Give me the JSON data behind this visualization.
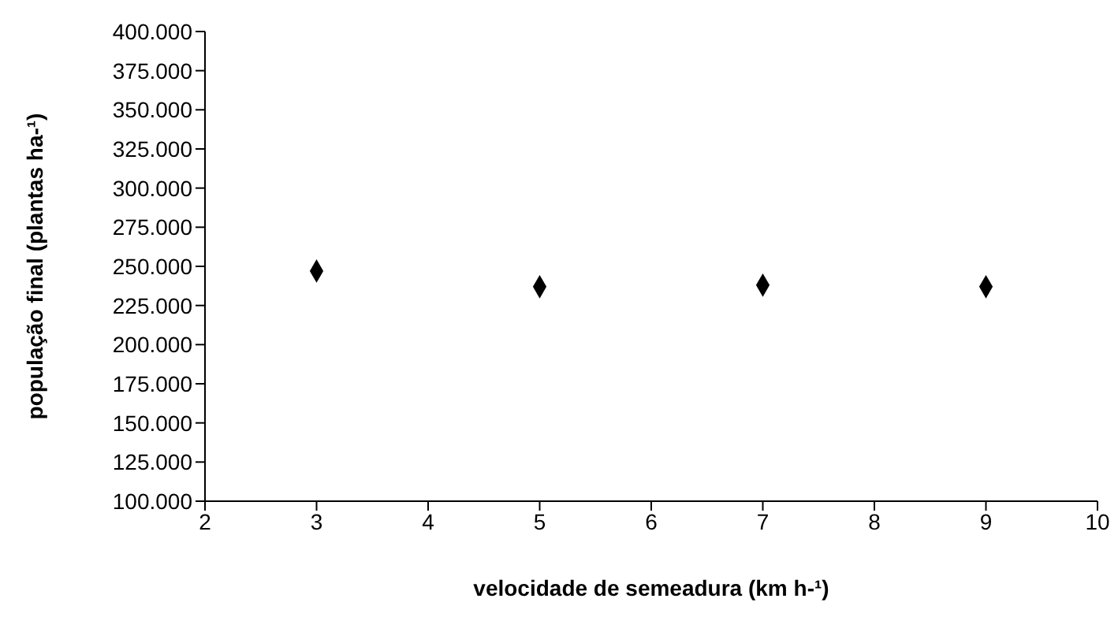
{
  "chart_data": {
    "type": "scatter",
    "xlabel": "velocidade  de semeadura (km h-¹)",
    "ylabel": "população  final (plantas ha-¹)",
    "x": [
      3,
      5,
      7,
      9
    ],
    "series": [
      {
        "color": "#000000",
        "values": [
          247000,
          237000,
          238000,
          237000
        ]
      }
    ],
    "xlim": [
      2,
      10
    ],
    "xticks": [
      2,
      3,
      4,
      5,
      6,
      7,
      8,
      9,
      10
    ],
    "ylim": [
      100000,
      400000
    ],
    "yticks": [
      {
        "value": 100000,
        "label": "100.000"
      },
      {
        "value": 125000,
        "label": "125.000"
      },
      {
        "value": 150000,
        "label": "150.000"
      },
      {
        "value": 175000,
        "label": "175.000"
      },
      {
        "value": 200000,
        "label": "200.000"
      },
      {
        "value": 225000,
        "label": "225.000"
      },
      {
        "value": 250000,
        "label": "250.000"
      },
      {
        "value": 275000,
        "label": "275.000"
      },
      {
        "value": 300000,
        "label": "300.000"
      },
      {
        "value": 325000,
        "label": "325.000"
      },
      {
        "value": 350000,
        "label": "350.000"
      },
      {
        "value": 375000,
        "label": "375.000"
      },
      {
        "value": 400000,
        "label": "400.000"
      }
    ],
    "grid": false,
    "legend": false,
    "marker": "diamond"
  }
}
